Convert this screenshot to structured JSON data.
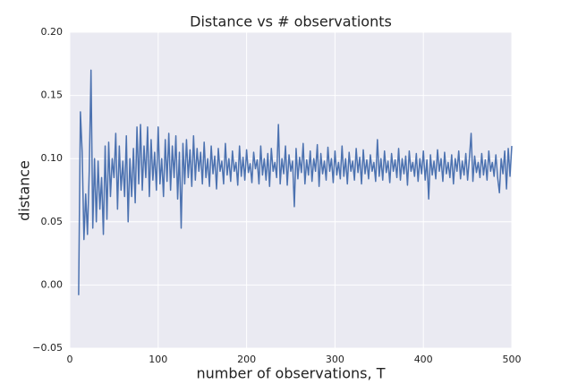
{
  "chart_data": {
    "type": "line",
    "title": "Distance vs # observationts",
    "xlabel": "number of observations, T",
    "ylabel": "distance",
    "color": "#4c72b0",
    "grid": true,
    "xlim": [
      0,
      500
    ],
    "ylim": [
      -0.05,
      0.2
    ],
    "xticks": [
      0,
      100,
      200,
      300,
      400,
      500
    ],
    "yticks": [
      {
        "value": -0.05,
        "label": "−0.05"
      },
      {
        "value": 0,
        "label": "0.00"
      },
      {
        "value": 0.05,
        "label": "0.05"
      },
      {
        "value": 0.1,
        "label": "0.10"
      },
      {
        "value": 0.15,
        "label": "0.15"
      },
      {
        "value": 0.2,
        "label": "0.20"
      }
    ],
    "x": [
      10,
      12,
      14,
      16,
      18,
      20,
      22,
      24,
      26,
      28,
      30,
      32,
      34,
      36,
      38,
      40,
      42,
      44,
      46,
      48,
      50,
      52,
      54,
      56,
      58,
      60,
      62,
      64,
      66,
      68,
      70,
      72,
      74,
      76,
      78,
      80,
      82,
      84,
      86,
      88,
      90,
      92,
      94,
      96,
      98,
      100,
      102,
      104,
      106,
      108,
      110,
      112,
      114,
      116,
      118,
      120,
      122,
      124,
      126,
      128,
      130,
      132,
      134,
      136,
      138,
      140,
      142,
      144,
      146,
      148,
      150,
      152,
      154,
      156,
      158,
      160,
      162,
      164,
      166,
      168,
      170,
      172,
      174,
      176,
      178,
      180,
      182,
      184,
      186,
      188,
      190,
      192,
      194,
      196,
      198,
      200,
      202,
      204,
      206,
      208,
      210,
      212,
      214,
      216,
      218,
      220,
      222,
      224,
      226,
      228,
      230,
      232,
      234,
      236,
      238,
      240,
      242,
      244,
      246,
      248,
      250,
      252,
      254,
      256,
      258,
      260,
      262,
      264,
      266,
      268,
      270,
      272,
      274,
      276,
      278,
      280,
      282,
      284,
      286,
      288,
      290,
      292,
      294,
      296,
      298,
      300,
      302,
      304,
      306,
      308,
      310,
      312,
      314,
      316,
      318,
      320,
      322,
      324,
      326,
      328,
      330,
      332,
      334,
      336,
      338,
      340,
      342,
      344,
      346,
      348,
      350,
      352,
      354,
      356,
      358,
      360,
      362,
      364,
      366,
      368,
      370,
      372,
      374,
      376,
      378,
      380,
      382,
      384,
      386,
      388,
      390,
      392,
      394,
      396,
      398,
      400,
      402,
      404,
      406,
      408,
      410,
      412,
      414,
      416,
      418,
      420,
      422,
      424,
      426,
      428,
      430,
      432,
      434,
      436,
      438,
      440,
      442,
      444,
      446,
      448,
      450,
      452,
      454,
      456,
      458,
      460,
      462,
      464,
      466,
      468,
      470,
      472,
      474,
      476,
      478,
      480,
      482,
      484,
      486,
      488,
      490,
      492,
      494,
      496,
      498,
      500
    ],
    "values": [
      -0.008,
      0.137,
      0.105,
      0.036,
      0.072,
      0.04,
      0.09,
      0.17,
      0.045,
      0.1,
      0.05,
      0.098,
      0.06,
      0.085,
      0.04,
      0.11,
      0.052,
      0.113,
      0.07,
      0.1,
      0.085,
      0.12,
      0.06,
      0.11,
      0.075,
      0.098,
      0.07,
      0.118,
      0.05,
      0.1,
      0.07,
      0.108,
      0.065,
      0.125,
      0.08,
      0.127,
      0.075,
      0.11,
      0.085,
      0.125,
      0.07,
      0.115,
      0.083,
      0.105,
      0.075,
      0.125,
      0.08,
      0.1,
      0.07,
      0.115,
      0.082,
      0.12,
      0.075,
      0.11,
      0.085,
      0.118,
      0.068,
      0.105,
      0.045,
      0.112,
      0.08,
      0.115,
      0.085,
      0.107,
      0.078,
      0.118,
      0.083,
      0.108,
      0.09,
      0.105,
      0.08,
      0.113,
      0.085,
      0.1,
      0.078,
      0.11,
      0.088,
      0.102,
      0.076,
      0.108,
      0.09,
      0.098,
      0.08,
      0.112,
      0.087,
      0.1,
      0.082,
      0.106,
      0.09,
      0.097,
      0.079,
      0.11,
      0.086,
      0.101,
      0.083,
      0.107,
      0.089,
      0.096,
      0.081,
      0.105,
      0.092,
      0.099,
      0.08,
      0.11,
      0.087,
      0.1,
      0.083,
      0.104,
      0.078,
      0.108,
      0.09,
      0.097,
      0.085,
      0.127,
      0.08,
      0.1,
      0.088,
      0.11,
      0.079,
      0.103,
      0.09,
      0.098,
      0.062,
      0.108,
      0.084,
      0.101,
      0.089,
      0.112,
      0.08,
      0.099,
      0.087,
      0.106,
      0.082,
      0.1,
      0.09,
      0.111,
      0.078,
      0.104,
      0.088,
      0.098,
      0.083,
      0.109,
      0.09,
      0.1,
      0.081,
      0.106,
      0.087,
      0.097,
      0.084,
      0.11,
      0.086,
      0.1,
      0.08,
      0.105,
      0.09,
      0.098,
      0.083,
      0.108,
      0.089,
      0.101,
      0.08,
      0.107,
      0.088,
      0.099,
      0.084,
      0.103,
      0.09,
      0.097,
      0.082,
      0.115,
      0.086,
      0.1,
      0.083,
      0.106,
      0.089,
      0.098,
      0.081,
      0.104,
      0.09,
      0.099,
      0.085,
      0.108,
      0.083,
      0.1,
      0.088,
      0.102,
      0.079,
      0.106,
      0.09,
      0.097,
      0.086,
      0.104,
      0.082,
      0.1,
      0.088,
      0.106,
      0.083,
      0.099,
      0.068,
      0.103,
      0.087,
      0.098,
      0.084,
      0.107,
      0.09,
      0.1,
      0.082,
      0.105,
      0.088,
      0.097,
      0.085,
      0.103,
      0.08,
      0.1,
      0.09,
      0.106,
      0.084,
      0.098,
      0.087,
      0.104,
      0.083,
      0.1,
      0.12,
      0.082,
      0.102,
      0.089,
      0.097,
      0.085,
      0.104,
      0.087,
      0.099,
      0.083,
      0.106,
      0.09,
      0.097,
      0.086,
      0.103,
      0.085,
      0.073,
      0.1,
      0.088,
      0.106,
      0.076,
      0.108,
      0.086,
      0.11
    ]
  }
}
